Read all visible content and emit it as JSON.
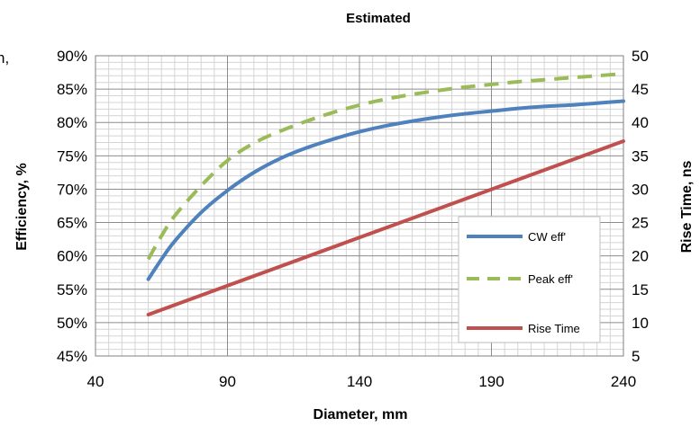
{
  "chart_data": {
    "type": "line",
    "title": "Estimated",
    "xlabel": "Diameter, mm",
    "ylabel": "Efficiency, %",
    "y2label": "Rise Time, ns",
    "clipped_text": "n,",
    "xlim": [
      40,
      240
    ],
    "ylim": [
      45,
      90
    ],
    "y2lim": [
      5,
      50
    ],
    "x_ticks": [
      "40",
      "90",
      "140",
      "190",
      "240"
    ],
    "y_ticks": [
      "45%",
      "50%",
      "55%",
      "60%",
      "65%",
      "70%",
      "75%",
      "80%",
      "85%",
      "90%"
    ],
    "y2_ticks": [
      "5",
      "10",
      "15",
      "20",
      "25",
      "30",
      "35",
      "40",
      "45",
      "50"
    ],
    "grid": true,
    "legend_position": "bottom-right",
    "series": [
      {
        "name": "CW eff'",
        "axis": "left",
        "style": "solid",
        "color": "#4f81bd",
        "x": [
          60,
          65,
          70,
          80,
          90,
          100,
          110,
          120,
          130,
          140,
          150,
          160,
          170,
          180,
          190,
          200,
          210,
          220,
          230,
          240
        ],
        "y": [
          56.5,
          59.5,
          62.2,
          66.5,
          69.8,
          72.5,
          74.6,
          76.2,
          77.5,
          78.6,
          79.5,
          80.2,
          80.8,
          81.3,
          81.7,
          82.1,
          82.4,
          82.6,
          82.9,
          83.2
        ]
      },
      {
        "name": "Peak eff'",
        "axis": "left",
        "style": "dashed",
        "color": "#9bbb59",
        "x": [
          60,
          65,
          70,
          80,
          90,
          100,
          110,
          120,
          130,
          140,
          150,
          160,
          170,
          180,
          190,
          200,
          210,
          220,
          230,
          240
        ],
        "y": [
          59.5,
          63.0,
          66.0,
          70.5,
          74.3,
          76.9,
          78.7,
          80.2,
          81.5,
          82.6,
          83.5,
          84.2,
          84.8,
          85.3,
          85.7,
          86.1,
          86.4,
          86.7,
          87.0,
          87.3
        ]
      },
      {
        "name": "Rise Time",
        "axis": "right",
        "style": "solid",
        "color": "#c0504d",
        "x": [
          60,
          240
        ],
        "y": [
          11.2,
          37.2
        ]
      }
    ]
  }
}
